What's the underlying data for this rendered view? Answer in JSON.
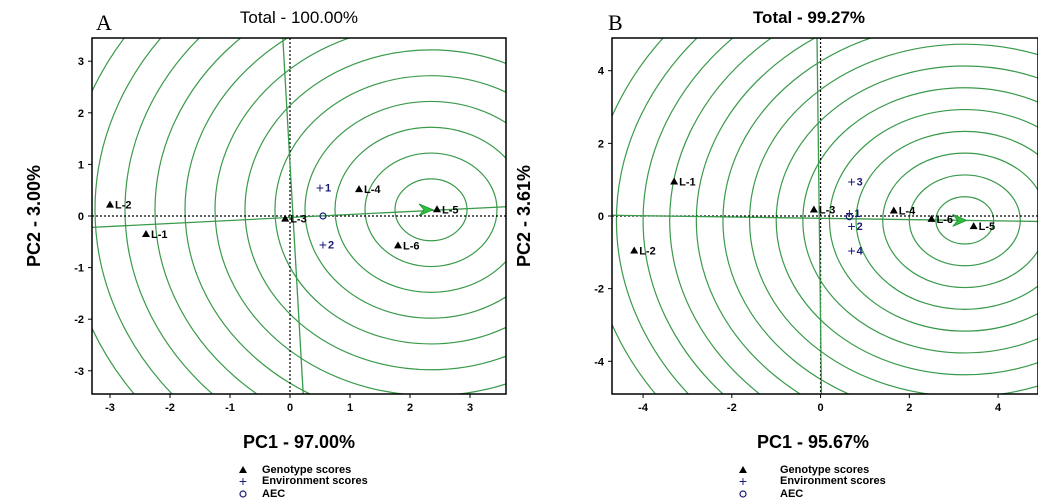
{
  "chart_data": [
    {
      "type": "scatter",
      "panel_letter": "A",
      "title": "Total - 100.00%",
      "xlabel": "PC1 - 97.00%",
      "ylabel": "PC2 - 3.00%",
      "xlim": [
        -3.3,
        3.6
      ],
      "ylim": [
        -3.45,
        3.45
      ],
      "xticks": [
        "-3",
        "-2",
        "-1",
        "0",
        "1",
        "2",
        "3"
      ],
      "yticks": [
        "-3",
        "-2",
        "-1",
        "0",
        "1",
        "2",
        "3"
      ],
      "genotypes": [
        {
          "label": "L-1",
          "x": -2.4,
          "y": -0.35
        },
        {
          "label": "L-2",
          "x": -3.0,
          "y": 0.22
        },
        {
          "label": "L-3",
          "x": -0.08,
          "y": -0.05
        },
        {
          "label": "L-4",
          "x": 1.15,
          "y": 0.52
        },
        {
          "label": "L-5",
          "x": 2.45,
          "y": 0.13
        },
        {
          "label": "L-6",
          "x": 1.8,
          "y": -0.57
        }
      ],
      "environments": [
        {
          "label": "1",
          "x": 0.5,
          "y": 0.55
        },
        {
          "label": "2",
          "x": 0.55,
          "y": -0.55
        }
      ],
      "aec_origin": [
        0.55,
        0.0
      ],
      "ideal": [
        2.35,
        0.12
      ],
      "circle_radii": [
        0.6,
        1.1,
        1.6,
        2.1,
        2.6,
        3.1,
        3.6,
        4.1,
        4.6,
        5.1,
        5.6,
        6.1
      ],
      "aec_abscissa": {
        "from": [
          -3.3,
          -0.22
        ],
        "to": [
          3.6,
          0.18
        ]
      },
      "aec_ordinate": {
        "from": [
          -0.12,
          3.45
        ],
        "to": [
          0.22,
          -3.45
        ]
      },
      "legend": [
        "Genotype scores",
        "Environment scores",
        "AEC"
      ]
    },
    {
      "type": "scatter",
      "panel_letter": "B",
      "title": "Total - 99.27%",
      "xlabel": "PC1 - 95.67%",
      "ylabel": "PC2 - 3.61%",
      "xlim": [
        -4.7,
        4.9
      ],
      "ylim": [
        -4.9,
        4.9
      ],
      "xticks": [
        "-4",
        "-2",
        "0",
        "2",
        "4"
      ],
      "yticks": [
        "-4",
        "-2",
        "0",
        "2",
        "4"
      ],
      "genotypes": [
        {
          "label": "L-1",
          "x": -3.3,
          "y": 0.95
        },
        {
          "label": "L-2",
          "x": -4.2,
          "y": -0.95
        },
        {
          "label": "L-3",
          "x": -0.15,
          "y": 0.18
        },
        {
          "label": "L-4",
          "x": 1.65,
          "y": 0.15
        },
        {
          "label": "L-5",
          "x": 3.45,
          "y": -0.28
        },
        {
          "label": "L-6",
          "x": 2.5,
          "y": -0.08
        }
      ],
      "environments": [
        {
          "label": "1",
          "x": 0.65,
          "y": 0.08
        },
        {
          "label": "2",
          "x": 0.7,
          "y": -0.28
        },
        {
          "label": "3",
          "x": 0.7,
          "y": 0.95
        },
        {
          "label": "4",
          "x": 0.7,
          "y": -0.95
        }
      ],
      "aec_origin": [
        0.65,
        -0.02
      ],
      "ideal": [
        3.25,
        -0.12
      ],
      "circle_radii": [
        0.65,
        1.25,
        1.85,
        2.45,
        3.05,
        3.65,
        4.25,
        4.85,
        5.45,
        6.05,
        6.65,
        7.25,
        7.85,
        8.45
      ],
      "aec_abscissa": {
        "from": [
          -4.7,
          0.02
        ],
        "to": [
          4.9,
          -0.15
        ]
      },
      "aec_ordinate": {
        "from": [
          -0.08,
          4.9
        ],
        "to": [
          0.02,
          -4.9
        ]
      },
      "legend": [
        "Genotype scores",
        "Environment scores",
        "AEC"
      ]
    }
  ]
}
